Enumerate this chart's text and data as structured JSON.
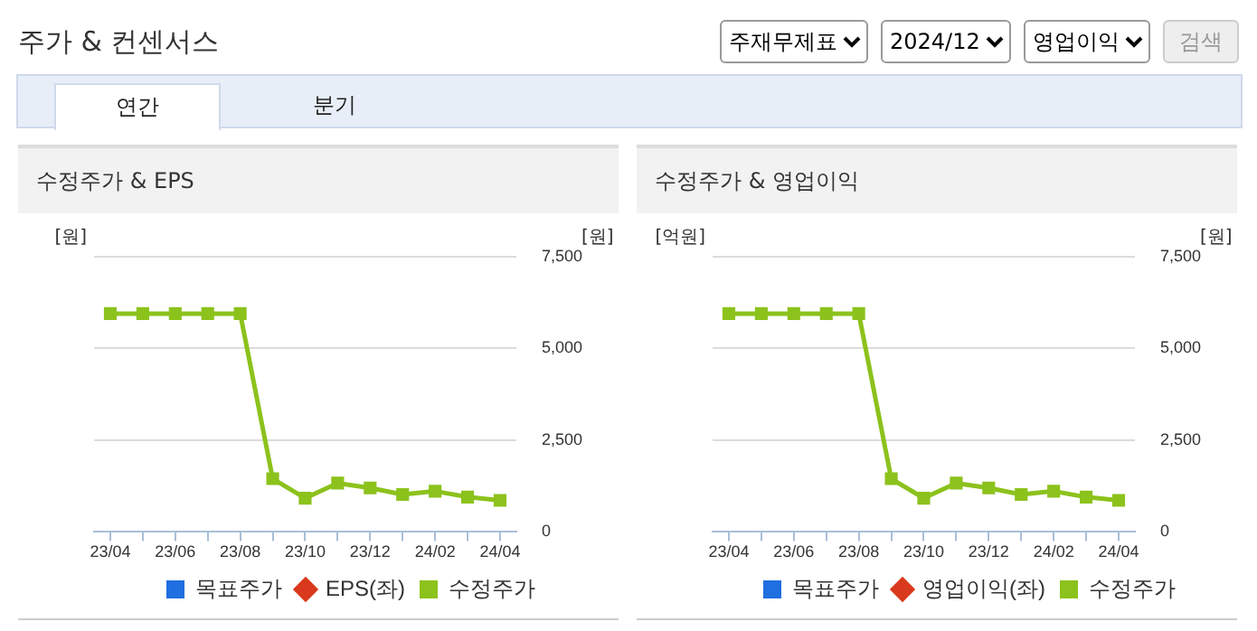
{
  "chart_data": [
    {
      "type": "other",
      "title": "주가 & 컨센서스",
      "annotations": [
        "주재무제표",
        "2024/12",
        "영업이익",
        "검색",
        "연간",
        "분기"
      ]
    },
    {
      "type": "line",
      "title": "수정주가 & EPS",
      "ylabel": "[원]",
      "y2label": "[원]",
      "categories": [
        "23/04",
        null,
        "23/06",
        null,
        "23/08",
        null,
        "23/10",
        null,
        "23/12",
        null,
        "24/02",
        null,
        "24/04"
      ],
      "y2lim": [
        0,
        7500
      ],
      "y2ticks": [
        0,
        {
          "value": 2500,
          "label": "2,500"
        },
        {
          "value": 5000,
          "label": "5,000"
        },
        {
          "value": 7500,
          "label": "7,500"
        }
      ],
      "grid": "y",
      "legend": "bottom",
      "series": [
        {
          "name": "목표주가",
          "type": "scatter",
          "marker": "square",
          "color": "#1f6fe0",
          "values": [
            null,
            null,
            null,
            null,
            null,
            null,
            null,
            null,
            null,
            null,
            null,
            null,
            null
          ]
        },
        {
          "name": "EPS(좌)",
          "type": "line",
          "marker": "diamond",
          "color": "#d9391c",
          "values": [
            null,
            null,
            null,
            null,
            null,
            null,
            null,
            null,
            null,
            null,
            null,
            null,
            null
          ]
        },
        {
          "name": "수정주가",
          "type": "line",
          "marker": "square",
          "axis": "y2",
          "color": "#8cc21c",
          "values": [
            5950,
            5950,
            5950,
            5950,
            5950,
            1450,
            920,
            1330,
            1200,
            1020,
            1110,
            950,
            860
          ]
        }
      ]
    },
    {
      "type": "line",
      "title": "수정주가 & 영업이익",
      "ylabel": "[억원]",
      "y2label": "[원]",
      "categories": [
        "23/04",
        null,
        "23/06",
        null,
        "23/08",
        null,
        "23/10",
        null,
        "23/12",
        null,
        "24/02",
        null,
        "24/04"
      ],
      "y2lim": [
        0,
        7500
      ],
      "y2ticks": [
        0,
        {
          "value": 2500,
          "label": "2,500"
        },
        {
          "value": 5000,
          "label": "5,000"
        },
        {
          "value": 7500,
          "label": "7,500"
        }
      ],
      "grid": "y",
      "legend": "bottom",
      "series": [
        {
          "name": "목표주가",
          "type": "scatter",
          "marker": "square",
          "color": "#1f6fe0",
          "values": [
            null,
            null,
            null,
            null,
            null,
            null,
            null,
            null,
            null,
            null,
            null,
            null,
            null
          ]
        },
        {
          "name": "영업이익(좌)",
          "type": "line",
          "marker": "diamond",
          "color": "#d9391c",
          "values": [
            null,
            null,
            null,
            null,
            null,
            null,
            null,
            null,
            null,
            null,
            null,
            null,
            null
          ]
        },
        {
          "name": "수정주가",
          "type": "line",
          "marker": "square",
          "axis": "y2",
          "color": "#8cc21c",
          "values": [
            5950,
            5950,
            5950,
            5950,
            5950,
            1450,
            920,
            1330,
            1200,
            1020,
            1110,
            950,
            860
          ]
        }
      ]
    }
  ]
}
